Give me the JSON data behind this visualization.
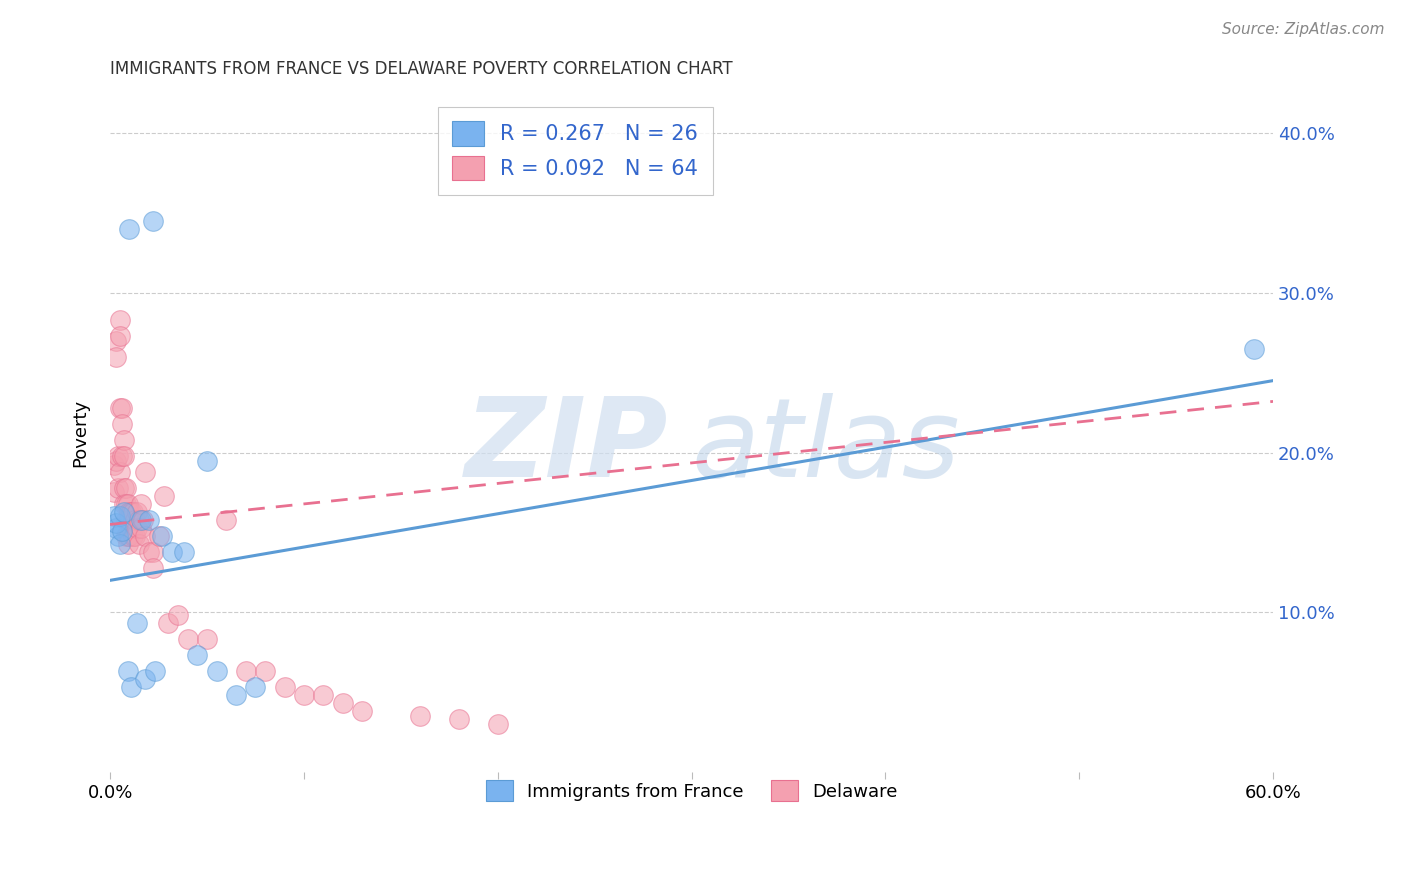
{
  "title": "IMMIGRANTS FROM FRANCE VS DELAWARE POVERTY CORRELATION CHART",
  "source": "Source: ZipAtlas.com",
  "ylabel": "Poverty",
  "yticks": [
    0.1,
    0.2,
    0.3,
    0.4
  ],
  "ytick_labels": [
    "10.0%",
    "20.0%",
    "30.0%",
    "40.0%"
  ],
  "xlim": [
    0.0,
    0.6
  ],
  "ylim": [
    0.0,
    0.425
  ],
  "legend_blue_R": "R = 0.267",
  "legend_blue_N": "N = 26",
  "legend_pink_R": "R = 0.092",
  "legend_pink_N": "N = 64",
  "legend_label_blue": "Immigrants from France",
  "legend_label_pink": "Delaware",
  "blue_color": "#7ab3ef",
  "blue_color_dark": "#5b9bd5",
  "pink_color": "#f4a0b0",
  "pink_color_dark": "#e87090",
  "legend_text_color": "#3366cc",
  "blue_scatter_x": [
    0.01,
    0.022,
    0.05,
    0.002,
    0.003,
    0.004,
    0.005,
    0.003,
    0.005,
    0.006,
    0.007,
    0.016,
    0.02,
    0.027,
    0.032,
    0.038,
    0.014,
    0.009,
    0.011,
    0.018,
    0.023,
    0.045,
    0.055,
    0.065,
    0.075,
    0.59
  ],
  "blue_scatter_y": [
    0.34,
    0.345,
    0.195,
    0.16,
    0.153,
    0.148,
    0.143,
    0.156,
    0.16,
    0.151,
    0.163,
    0.158,
    0.158,
    0.148,
    0.138,
    0.138,
    0.093,
    0.063,
    0.053,
    0.058,
    0.063,
    0.073,
    0.063,
    0.048,
    0.053,
    0.265
  ],
  "pink_scatter_x": [
    0.002,
    0.002,
    0.003,
    0.003,
    0.003,
    0.004,
    0.004,
    0.005,
    0.005,
    0.005,
    0.005,
    0.006,
    0.006,
    0.006,
    0.007,
    0.007,
    0.007,
    0.007,
    0.008,
    0.008,
    0.008,
    0.008,
    0.009,
    0.009,
    0.009,
    0.009,
    0.01,
    0.01,
    0.01,
    0.011,
    0.011,
    0.012,
    0.012,
    0.013,
    0.013,
    0.014,
    0.014,
    0.015,
    0.015,
    0.016,
    0.016,
    0.017,
    0.018,
    0.018,
    0.02,
    0.022,
    0.022,
    0.025,
    0.028,
    0.03,
    0.035,
    0.04,
    0.05,
    0.06,
    0.07,
    0.08,
    0.09,
    0.1,
    0.11,
    0.12,
    0.13,
    0.16,
    0.18,
    0.2
  ],
  "pink_scatter_y": [
    0.192,
    0.175,
    0.27,
    0.26,
    0.195,
    0.198,
    0.178,
    0.283,
    0.273,
    0.228,
    0.188,
    0.228,
    0.218,
    0.198,
    0.208,
    0.198,
    0.178,
    0.168,
    0.178,
    0.168,
    0.158,
    0.148,
    0.168,
    0.158,
    0.148,
    0.143,
    0.163,
    0.158,
    0.148,
    0.163,
    0.153,
    0.163,
    0.148,
    0.158,
    0.148,
    0.163,
    0.153,
    0.158,
    0.143,
    0.153,
    0.168,
    0.158,
    0.188,
    0.148,
    0.138,
    0.138,
    0.128,
    0.148,
    0.173,
    0.093,
    0.098,
    0.083,
    0.083,
    0.158,
    0.063,
    0.063,
    0.053,
    0.048,
    0.048,
    0.043,
    0.038,
    0.035,
    0.033,
    0.03
  ],
  "blue_line_x": [
    0.0,
    0.6
  ],
  "blue_line_y": [
    0.12,
    0.245
  ],
  "pink_line_x": [
    0.0,
    0.6
  ],
  "pink_line_y": [
    0.155,
    0.232
  ],
  "grid_color": "#cccccc",
  "background_color": "#ffffff",
  "title_color": "#333333",
  "source_color": "#888888"
}
